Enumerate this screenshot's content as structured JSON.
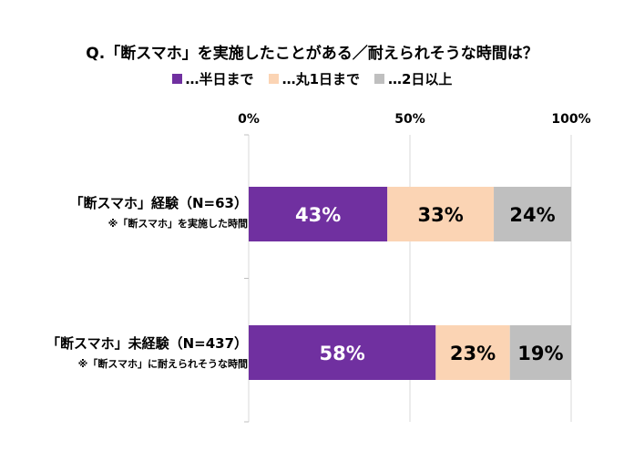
{
  "chart_data": {
    "type": "bar",
    "orientation": "horizontal",
    "stacked": true,
    "title": "Q.「断スマホ」を実施したことがある／耐えられそうな時間は？",
    "xlim": [
      0,
      100
    ],
    "xticks": [
      "0%",
      "50%",
      "100%"
    ],
    "grid": true,
    "legend_position": "top",
    "categories": [
      {
        "label": "「断スマホ」経験（N=63）",
        "sublabel": "※「断スマホ」を実施した時間"
      },
      {
        "label": "「断スマホ」未経験（N=437）",
        "sublabel": "※「断スマホ」に耐えられそうな時間"
      }
    ],
    "series": [
      {
        "name": "…半日まで",
        "color": "#7030a0",
        "label_color": "#ffffff",
        "values": [
          43,
          58
        ]
      },
      {
        "name": "…丸1日まで",
        "color": "#fbd4b4",
        "label_color": "#000000",
        "values": [
          33,
          23
        ]
      },
      {
        "name": "…2日以上",
        "color": "#bfbfbf",
        "label_color": "#000000",
        "values": [
          24,
          19
        ]
      }
    ]
  }
}
